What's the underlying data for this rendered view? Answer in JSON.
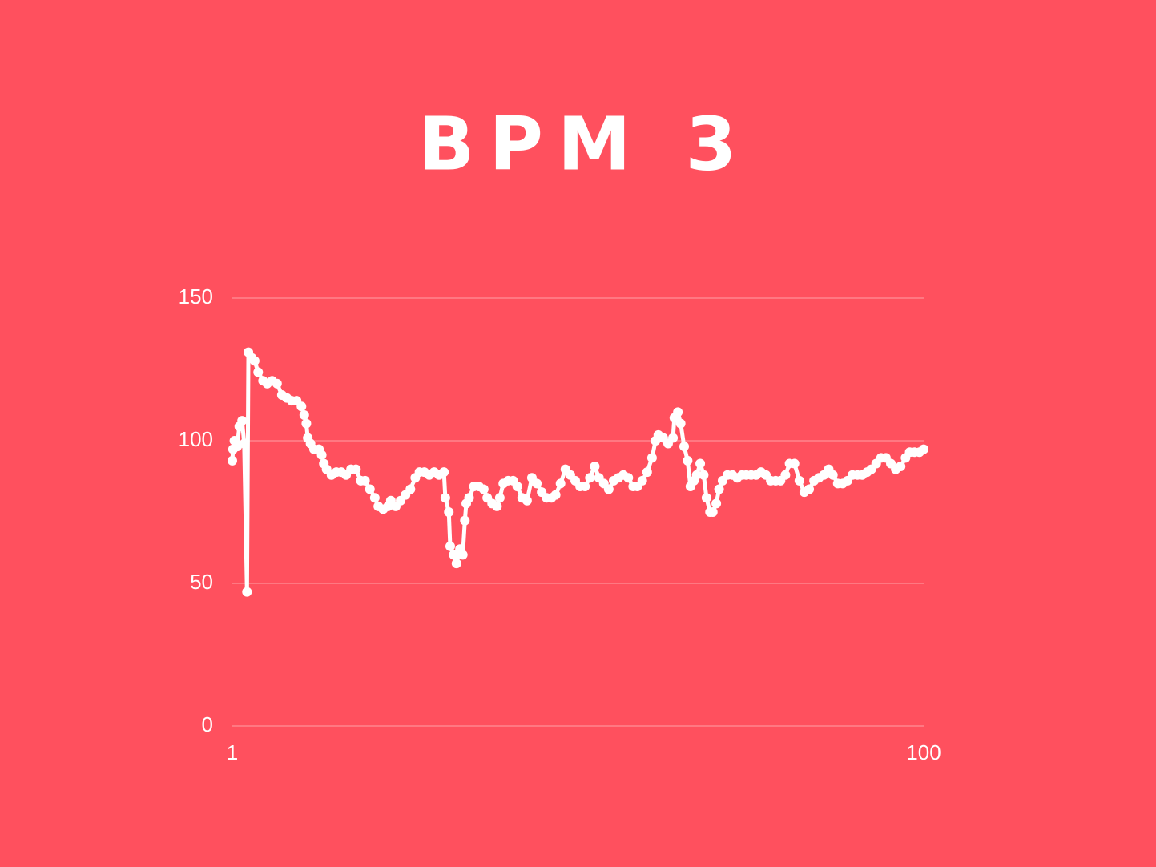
{
  "chart_data": {
    "type": "line",
    "title": "BPM 3",
    "color": "#ffffff",
    "background": "#ff505e",
    "grid": true,
    "xlim": [
      1,
      100
    ],
    "xticks": [
      1,
      100
    ],
    "ylim": [
      0,
      150
    ],
    "yticks": [
      0,
      50,
      100,
      150
    ],
    "x": [
      1.0,
      1.1,
      1.3,
      1.7,
      2.0,
      2.4,
      2.7,
      3.1,
      3.3,
      3.8,
      4.2,
      4.7,
      5.4,
      6.0,
      6.7,
      7.4,
      8.1,
      8.8,
      9.5,
      10.2,
      10.9,
      11.3,
      11.6,
      11.8,
      12.2,
      12.7,
      13.4,
      13.8,
      14.1,
      14.5,
      15.2,
      15.9,
      16.6,
      17.3,
      18.0,
      18.7,
      19.4,
      20.0,
      20.7,
      21.4,
      21.9,
      22.6,
      23.3,
      23.7,
      24.4,
      25.1,
      25.8,
      26.5,
      27.2,
      27.8,
      28.5,
      29.2,
      29.9,
      30.6,
      31.3,
      31.5,
      32.0,
      32.2,
      32.7,
      33.1,
      33.6,
      34.0,
      34.3,
      34.5,
      34.9,
      35.6,
      36.3,
      37.0,
      37.5,
      38.2,
      38.9,
      39.3,
      39.8,
      40.5,
      41.2,
      41.8,
      42.5,
      43.2,
      43.9,
      44.6,
      45.3,
      46.0,
      46.7,
      47.3,
      48.0,
      48.7,
      49.4,
      50.1,
      50.8,
      51.5,
      52.2,
      52.9,
      53.5,
      54.2,
      54.9,
      55.6,
      56.3,
      57.0,
      57.7,
      58.4,
      59.0,
      59.7,
      60.4,
      61.1,
      61.6,
      62.0,
      62.7,
      63.4,
      64.1,
      64.3,
      64.8,
      65.2,
      65.7,
      66.2,
      66.6,
      67.1,
      67.5,
      68.0,
      68.5,
      68.9,
      69.4,
      69.8,
      70.3,
      70.7,
      71.2,
      71.9,
      72.6,
      73.3,
      74.0,
      74.6,
      75.3,
      76.0,
      76.7,
      77.4,
      78.1,
      78.8,
      79.5,
      80.2,
      80.8,
      81.5,
      82.2,
      82.9,
      83.6,
      84.3,
      85.0,
      85.7,
      86.4,
      87.0,
      87.7,
      88.4,
      89.1,
      89.8,
      90.5,
      91.2,
      91.9,
      92.5,
      93.2,
      93.9,
      94.6,
      95.3,
      96.0,
      96.7,
      97.4,
      98.0,
      98.7,
      99.4,
      100
    ],
    "values": [
      93,
      97,
      100,
      98,
      105,
      107,
      99,
      47,
      131,
      129,
      128,
      124,
      121,
      120,
      121,
      120,
      116,
      115,
      114,
      114,
      112,
      109,
      106,
      101,
      99,
      97,
      97,
      95,
      92,
      90,
      88,
      89,
      89,
      88,
      90,
      90,
      86,
      86,
      83,
      80,
      77,
      76,
      77,
      79,
      77,
      79,
      81,
      83,
      87,
      89,
      89,
      88,
      89,
      88,
      89,
      80,
      75,
      63,
      60,
      57,
      62,
      60,
      72,
      78,
      80,
      84,
      84,
      83,
      80,
      78,
      77,
      80,
      85,
      86,
      86,
      84,
      80,
      79,
      87,
      85,
      82,
      80,
      80,
      81,
      85,
      90,
      88,
      86,
      84,
      84,
      87,
      91,
      87,
      85,
      83,
      86,
      87,
      88,
      87,
      84,
      84,
      86,
      89,
      94,
      100,
      102,
      101,
      99,
      101,
      108,
      110,
      106,
      98,
      93,
      84,
      86,
      88,
      92,
      88,
      80,
      75,
      75,
      78,
      83,
      86,
      88,
      88,
      87,
      88,
      88,
      88,
      88,
      89,
      88,
      86,
      86,
      86,
      88,
      92,
      92,
      86,
      82,
      83,
      86,
      87,
      88,
      90,
      88,
      85,
      85,
      86,
      88,
      88,
      88,
      89,
      90,
      92,
      94,
      94,
      92,
      90,
      91,
      94,
      96,
      96,
      96,
      97
    ]
  }
}
